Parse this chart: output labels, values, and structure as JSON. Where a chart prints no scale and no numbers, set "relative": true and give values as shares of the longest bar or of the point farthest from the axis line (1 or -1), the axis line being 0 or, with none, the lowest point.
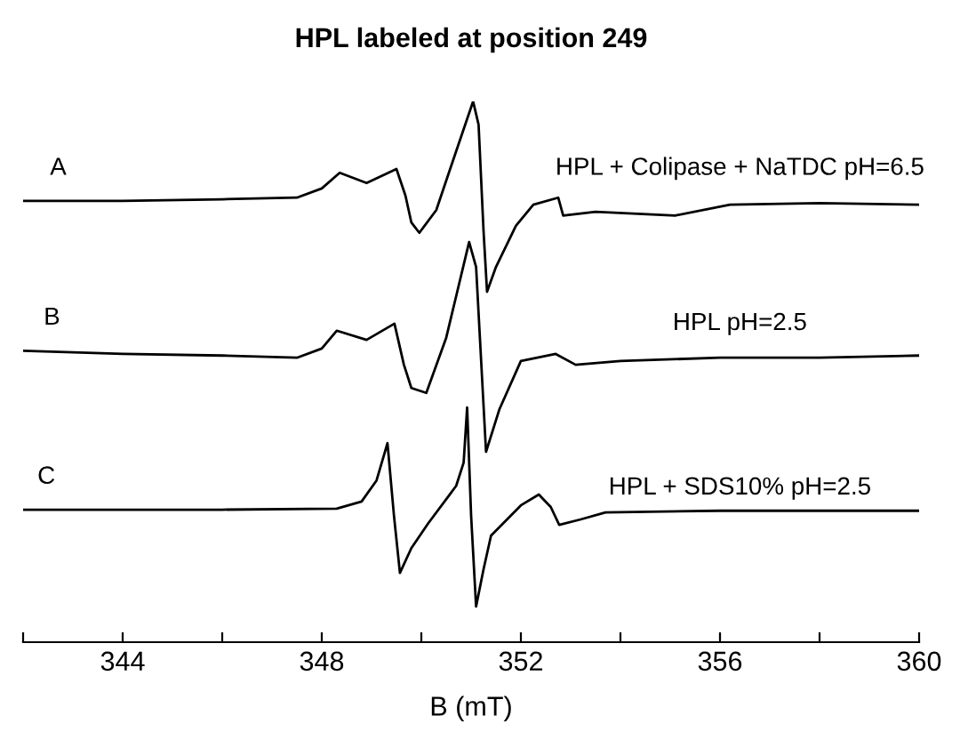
{
  "chart_data": {
    "type": "line",
    "title": "HPL labeled at position 249",
    "xlabel": "B (mT)",
    "relative": true,
    "tick_labels": "x",
    "xlim": [
      342,
      360
    ],
    "xticks": [
      {
        "value": 342,
        "label": null
      },
      344,
      {
        "value": 346,
        "label": null
      },
      348,
      {
        "value": 350,
        "label": null
      },
      352,
      {
        "value": 354,
        "label": null
      },
      356,
      {
        "value": 358,
        "label": null
      },
      360
    ],
    "series": [
      {
        "color": "#000000",
        "x": [
          342,
          344,
          346,
          347.5,
          348.0,
          348.36,
          348.9,
          349.5,
          349.68,
          349.8,
          349.96,
          350.3,
          350.7,
          351.04,
          351.15,
          351.25,
          351.32,
          351.5,
          351.9,
          352.25,
          352.75,
          352.85,
          353.5,
          355.1,
          356.2,
          358,
          360
        ],
        "values": [
          0.816,
          0.816,
          0.819,
          0.822,
          0.839,
          0.868,
          0.849,
          0.875,
          0.826,
          0.776,
          0.757,
          0.799,
          0.908,
          1.0,
          0.957,
          0.76,
          0.648,
          0.694,
          0.77,
          0.809,
          0.822,
          0.789,
          0.796,
          0.789,
          0.809,
          0.812,
          0.809
        ]
      },
      {
        "color": "#000000",
        "x": [
          342,
          344,
          346,
          347.5,
          348.0,
          348.3,
          348.9,
          349.46,
          349.65,
          349.8,
          350.1,
          350.5,
          350.96,
          351.1,
          351.3,
          351.57,
          352.0,
          352.7,
          353.1,
          354,
          356,
          358,
          360
        ],
        "values": [
          0.539,
          0.533,
          0.53,
          0.526,
          0.543,
          0.576,
          0.559,
          0.589,
          0.513,
          0.47,
          0.461,
          0.563,
          0.74,
          0.694,
          0.352,
          0.431,
          0.52,
          0.533,
          0.513,
          0.52,
          0.526,
          0.526,
          0.53
        ]
      },
      {
        "color": "#000000",
        "x": [
          342,
          346,
          348.3,
          348.8,
          349.1,
          349.32,
          349.45,
          349.57,
          349.8,
          350.14,
          350.7,
          350.85,
          350.92,
          351.0,
          351.1,
          351.25,
          351.4,
          352.0,
          352.36,
          352.6,
          352.77,
          353.2,
          353.7,
          356,
          360
        ],
        "values": [
          0.245,
          0.245,
          0.247,
          0.26,
          0.299,
          0.368,
          0.234,
          0.128,
          0.174,
          0.22,
          0.289,
          0.332,
          0.434,
          0.234,
          0.066,
          0.135,
          0.197,
          0.253,
          0.273,
          0.25,
          0.217,
          0.227,
          0.24,
          0.243,
          0.243
        ]
      }
    ],
    "annotations": [
      "A",
      "B",
      "C",
      "HPL + Colipase + NaTDC pH=6.5",
      "HPL pH=2.5",
      "HPL + SDS10% pH=2.5"
    ]
  }
}
